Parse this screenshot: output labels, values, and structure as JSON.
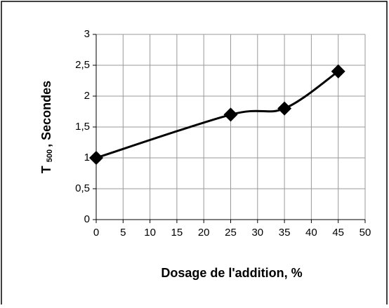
{
  "chart_data": {
    "type": "line",
    "x_label": "Dosage de l'addition, %",
    "y_label_parts": [
      "T",
      "500",
      ", Secondes"
    ],
    "x": [
      0,
      25,
      35,
      45
    ],
    "series": [
      {
        "color": "#000000",
        "values": [
          1,
          1.7,
          1.8,
          2.4
        ]
      }
    ],
    "xlim": [
      0,
      50
    ],
    "xticks": [
      0,
      5,
      10,
      15,
      20,
      25,
      30,
      35,
      40,
      45,
      50
    ],
    "ylim": [
      0,
      3
    ],
    "yticks": [
      0,
      {
        "value": 0.5,
        "label": "0,5"
      },
      1,
      {
        "value": 1.5,
        "label": "1,5"
      },
      2,
      {
        "value": 2.5,
        "label": "2,5"
      },
      3
    ],
    "grid": true,
    "marker": "diamond",
    "smooth": true
  }
}
